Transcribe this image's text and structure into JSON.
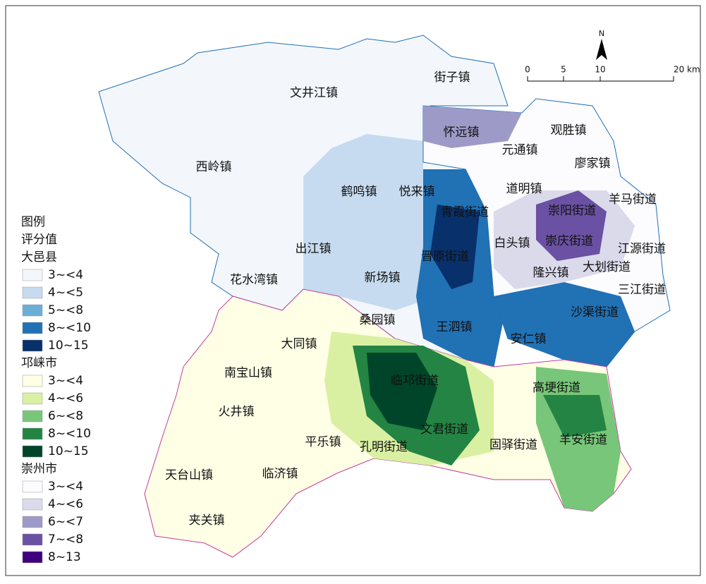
{
  "legend": {
    "title": "图例",
    "subtitle": "评分值",
    "groups": [
      {
        "name": "大邑县",
        "items": [
          {
            "label": "3~<4",
            "color": "#f3f7fc"
          },
          {
            "label": "4~<5",
            "color": "#c6dbef"
          },
          {
            "label": "5~<8",
            "color": "#6baed6"
          },
          {
            "label": "8~<10",
            "color": "#2171b5"
          },
          {
            "label": "10~15",
            "color": "#08306b"
          }
        ]
      },
      {
        "name": "邛崃市",
        "items": [
          {
            "label": "3~<4",
            "color": "#ffffe5"
          },
          {
            "label": "4~<6",
            "color": "#d9f0a3"
          },
          {
            "label": "6~<8",
            "color": "#78c679"
          },
          {
            "label": "8~<10",
            "color": "#238443"
          },
          {
            "label": "10~15",
            "color": "#004529"
          }
        ]
      },
      {
        "name": "崇州市",
        "items": [
          {
            "label": "3~<4",
            "color": "#fcfbfd"
          },
          {
            "label": "4~<6",
            "color": "#dadaeb"
          },
          {
            "label": "6~<7",
            "color": "#9e9ac8"
          },
          {
            "label": "7~<8",
            "color": "#6a51a3"
          },
          {
            "label": "8~13",
            "color": "#3f007d"
          }
        ]
      }
    ]
  },
  "north_arrow": "N",
  "scale_bar": {
    "labels": [
      "0",
      "5",
      "10",
      "20 km"
    ]
  },
  "places": [
    "文井江镇",
    "街子镇",
    "西岭镇",
    "怀远镇",
    "观胜镇",
    "元通镇",
    "廖家镇",
    "鹤鸣镇",
    "悦来镇",
    "道明镇",
    "羊马街道",
    "青霞街道",
    "崇阳街道",
    "出江镇",
    "白头镇",
    "崇庆街道",
    "江源街道",
    "晋原街道",
    "大划街道",
    "隆兴镇",
    "花水湾镇",
    "新场镇",
    "三江街道",
    "沙渠街道",
    "桑园镇",
    "王泗镇",
    "大同镇",
    "安仁镇",
    "南宝山镇",
    "临邛街道",
    "高埂街道",
    "火井镇",
    "平乐镇",
    "文君街道",
    "孔明街道",
    "固驿街道",
    "羊安街道",
    "天台山镇",
    "临济镇",
    "夹关镇"
  ]
}
